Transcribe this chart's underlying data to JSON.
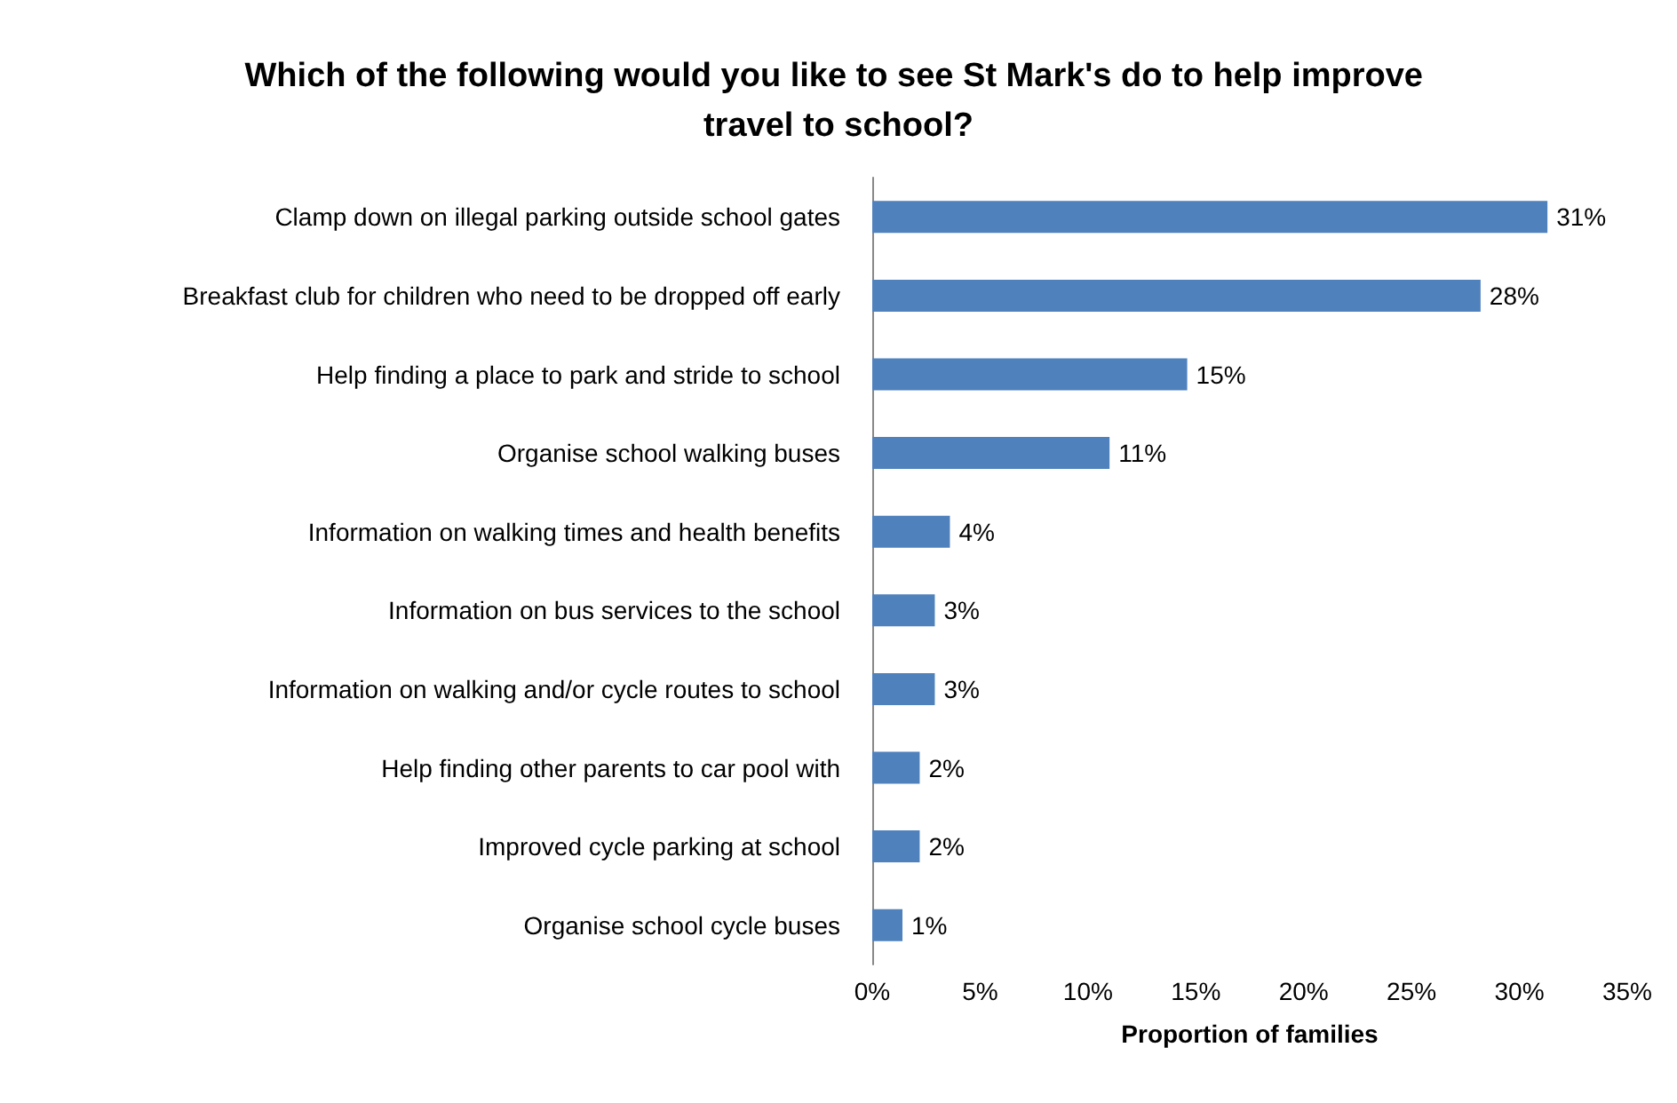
{
  "chart_data": {
    "type": "bar",
    "orientation": "horizontal",
    "title": "Which of the following would you like to see St Mark's do to help improve travel to school?",
    "xlabel": "Proportion of families",
    "categories": [
      "Clamp down on illegal parking outside school gates",
      "Breakfast club for children who need to be dropped off early",
      "Help finding a place to park and stride to school",
      "Organise school walking buses",
      "Information on walking times and health benefits",
      "Information on bus services to the school",
      "Information on walking and/or cycle routes to school",
      "Help finding other parents to car pool with",
      "Improved cycle parking at school",
      "Organise school cycle buses"
    ],
    "values": [
      31.3,
      28.2,
      14.6,
      11.0,
      3.6,
      2.9,
      2.9,
      2.2,
      2.2,
      1.4
    ],
    "value_labels": [
      "31%",
      "28%",
      "15%",
      "11%",
      "4%",
      "3%",
      "3%",
      "2%",
      "2%",
      "1%"
    ],
    "color": "#4f81bd",
    "xlim": [
      0,
      35
    ],
    "xticks": [
      {
        "value": 0,
        "label": "0%"
      },
      {
        "value": 5,
        "label": "5%"
      },
      {
        "value": 10,
        "label": "10%"
      },
      {
        "value": 15,
        "label": "15%"
      },
      {
        "value": 20,
        "label": "20%"
      },
      {
        "value": 25,
        "label": "25%"
      },
      {
        "value": 30,
        "label": "30%"
      },
      {
        "value": 35,
        "label": "35%"
      }
    ],
    "grid": false
  }
}
